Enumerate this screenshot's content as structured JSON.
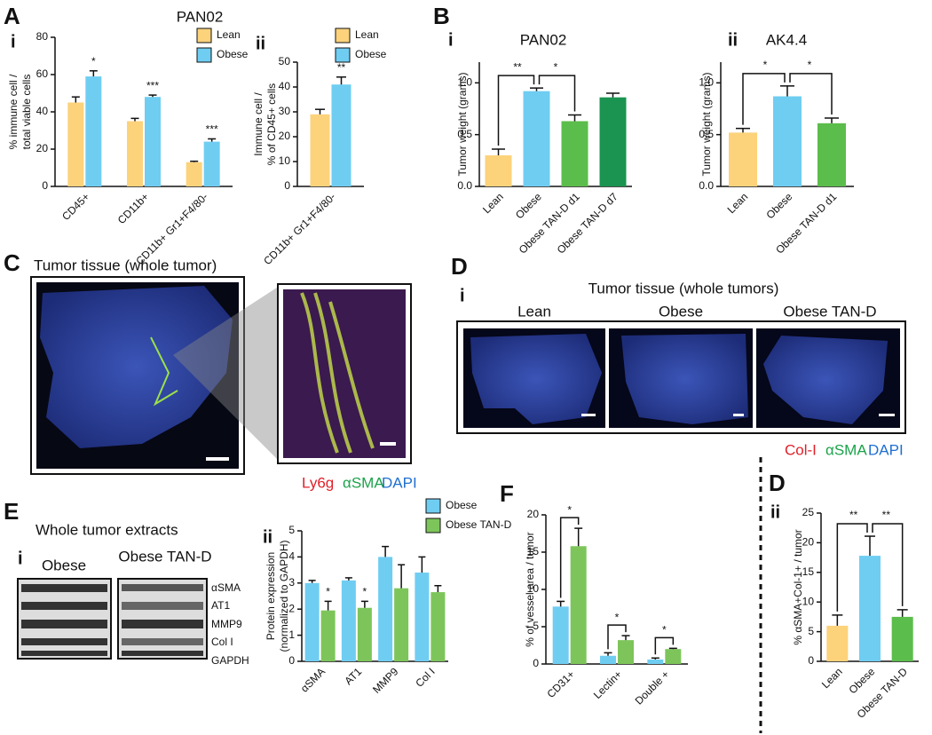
{
  "chart_data": [
    {
      "type": "bar",
      "panel": "A",
      "subpanel": "i",
      "title": "PAN02",
      "ylabel": [
        "% immune cell /",
        "total viable cells"
      ],
      "categories": [
        "CD45+",
        "CD11b+",
        "CD11b+ Gr1+F4/80-"
      ],
      "series": [
        {
          "name": "Lean",
          "color": "#fcd27b",
          "values": [
            45,
            35,
            13
          ],
          "errors": [
            3,
            1.5,
            0.5
          ],
          "significance": [
            null,
            null,
            null
          ]
        },
        {
          "name": "Obese",
          "color": "#6fcdf2",
          "values": [
            59,
            48,
            24
          ],
          "errors": [
            3,
            1,
            1.5
          ],
          "significance": [
            "*",
            "***",
            "***"
          ]
        }
      ],
      "ylim": [
        0,
        80
      ],
      "yticks": [
        0,
        20,
        40,
        60,
        80
      ],
      "legend": true,
      "grid": false
    },
    {
      "type": "bar",
      "subpanel": "ii",
      "ylabel": [
        "Immune cell /",
        "% of CD45+ cells"
      ],
      "categories": [
        "CD11b+ Gr1+F4/80-"
      ],
      "series": [
        {
          "name": "Lean",
          "color": "#fcd27b",
          "values": [
            29
          ],
          "errors": [
            2
          ],
          "significance": [
            null
          ]
        },
        {
          "name": "Obese",
          "color": "#6fcdf2",
          "values": [
            41
          ],
          "errors": [
            3
          ],
          "significance": [
            "**"
          ]
        }
      ],
      "ylim": [
        0,
        50
      ],
      "yticks": [
        0,
        10,
        20,
        30,
        40,
        50
      ],
      "legend": true,
      "grid": false
    },
    {
      "type": "bar",
      "panel": "B",
      "subpanel": "i",
      "title": "PAN02",
      "ylabel": [
        "Tumor weight (grams)"
      ],
      "categories": [
        "Lean",
        "Obese",
        "Obese TAN-D d1",
        "Obese TAN-D d7"
      ],
      "values": [
        0.3,
        0.92,
        0.63,
        0.86
      ],
      "errors": [
        0.06,
        0.03,
        0.06,
        0.04
      ],
      "colors": [
        "#fcd27b",
        "#6fcdf2",
        "#5bbd4b",
        "#1a9450"
      ],
      "comparisons": [
        {
          "pair": [
            "Lean",
            "Obese"
          ],
          "label": "**"
        },
        {
          "pair": [
            "Obese",
            "Obese TAN-D d1"
          ],
          "label": "*"
        }
      ],
      "ylim": [
        0,
        1.2
      ],
      "yticks": [
        {
          "value": 0,
          "label": "0.0"
        },
        0.5,
        {
          "value": 1,
          "label": "1.0"
        }
      ],
      "legend": false,
      "grid": false
    },
    {
      "type": "bar",
      "subpanel": "ii",
      "title": "AK4.4",
      "ylabel": [
        "Tumor weight (grams)"
      ],
      "categories": [
        "Lean",
        "Obese",
        "Obese TAN-D d1"
      ],
      "values": [
        0.52,
        0.87,
        0.61
      ],
      "errors": [
        0.04,
        0.1,
        0.05
      ],
      "colors": [
        "#fcd27b",
        "#6fcdf2",
        "#5bbd4b"
      ],
      "comparisons": [
        {
          "pair": [
            "Lean",
            "Obese"
          ],
          "label": "*"
        },
        {
          "pair": [
            "Obese",
            "Obese TAN-D d1"
          ],
          "label": "*"
        }
      ],
      "ylim": [
        0,
        1.2
      ],
      "yticks": [
        {
          "value": 0,
          "label": "0.0"
        },
        0.5,
        {
          "value": 1,
          "label": "1.0"
        }
      ],
      "legend": false,
      "grid": false
    },
    {
      "type": "bar",
      "subpanel": "ii",
      "ylabel": [
        "Protein expression",
        "(normalized to GAPDH)"
      ],
      "categories": [
        "αSMA",
        "AT1",
        "MMP9",
        "Col I"
      ],
      "series": [
        {
          "name": "Obese",
          "color": "#6fcdf2",
          "values": [
            3.0,
            3.1,
            4.0,
            3.4
          ],
          "errors": [
            0.1,
            0.1,
            0.4,
            0.6
          ],
          "significance": [
            null,
            null,
            null,
            null
          ]
        },
        {
          "name": "Obese TAN-D",
          "color": "#7dc55a",
          "values": [
            1.95,
            2.05,
            2.8,
            2.65
          ],
          "errors": [
            0.35,
            0.25,
            0.9,
            0.25
          ],
          "significance": [
            "*",
            "*",
            null,
            null
          ]
        }
      ],
      "ylim": [
        0,
        5
      ],
      "yticks": [
        0,
        1,
        2,
        3,
        4,
        5
      ],
      "legend": true,
      "grid": false
    },
    {
      "type": "bar",
      "panel": "F",
      "ylabel": [
        "% of vessel area / tumor"
      ],
      "categories": [
        "CD31+",
        "Lectin+",
        "Double +"
      ],
      "series": [
        {
          "name": "Obese",
          "color": "#6fcdf2",
          "values": [
            7.7,
            1.1,
            0.6
          ],
          "errors": [
            0.7,
            0.4,
            0.2
          ],
          "significance": [
            null,
            null,
            null
          ]
        },
        {
          "name": "Obese TAN-D",
          "color": "#7dc55a",
          "values": [
            15.8,
            3.2,
            2.0
          ],
          "errors": [
            2.4,
            0.6,
            0.1
          ],
          "significance": [
            "*",
            "*",
            "*"
          ]
        }
      ],
      "ylim": [
        0,
        20
      ],
      "yticks": [
        0,
        5,
        10,
        15,
        20
      ],
      "legend": false,
      "grid": false
    },
    {
      "type": "bar",
      "panel": "D",
      "subpanel": "ii",
      "ylabel": [
        "% αSMA+Col-1+ / tumor"
      ],
      "categories": [
        "Lean",
        "Obese",
        "Obese TAN-D"
      ],
      "values": [
        6,
        17.8,
        7.5
      ],
      "errors": [
        1.8,
        3.3,
        1.2
      ],
      "colors": [
        "#fcd27b",
        "#6fcdf2",
        "#5bbd4b"
      ],
      "comparisons": [
        {
          "pair": [
            "Lean",
            "Obese"
          ],
          "label": "**"
        },
        {
          "pair": [
            "Obese",
            "Obese TAN-D"
          ],
          "label": "**"
        }
      ],
      "ylim": [
        0,
        25
      ],
      "yticks": [
        0,
        5,
        10,
        15,
        20,
        25
      ],
      "legend": false,
      "grid": false
    }
  ],
  "figure": {
    "C": {
      "letter": "C",
      "title": "Tumor tissue (whole tumor)",
      "stain": [
        "Ly6g",
        "αSMA",
        "DAPI"
      ]
    },
    "D": {
      "letter": "D",
      "subpanel": "i",
      "title": "Tumor tissue (whole tumors)",
      "groups": [
        "Lean",
        "Obese",
        "Obese TAN-D"
      ],
      "stain": [
        "Col-I",
        "αSMA",
        "DAPI"
      ]
    },
    "E": {
      "letter": "E",
      "subpanel": "i",
      "title": "Whole tumor extracts",
      "groups": [
        "Obese",
        "Obese TAN-D"
      ],
      "bands": [
        "αSMA",
        "AT1",
        "MMP9",
        "Col I",
        "GAPDH"
      ]
    }
  }
}
